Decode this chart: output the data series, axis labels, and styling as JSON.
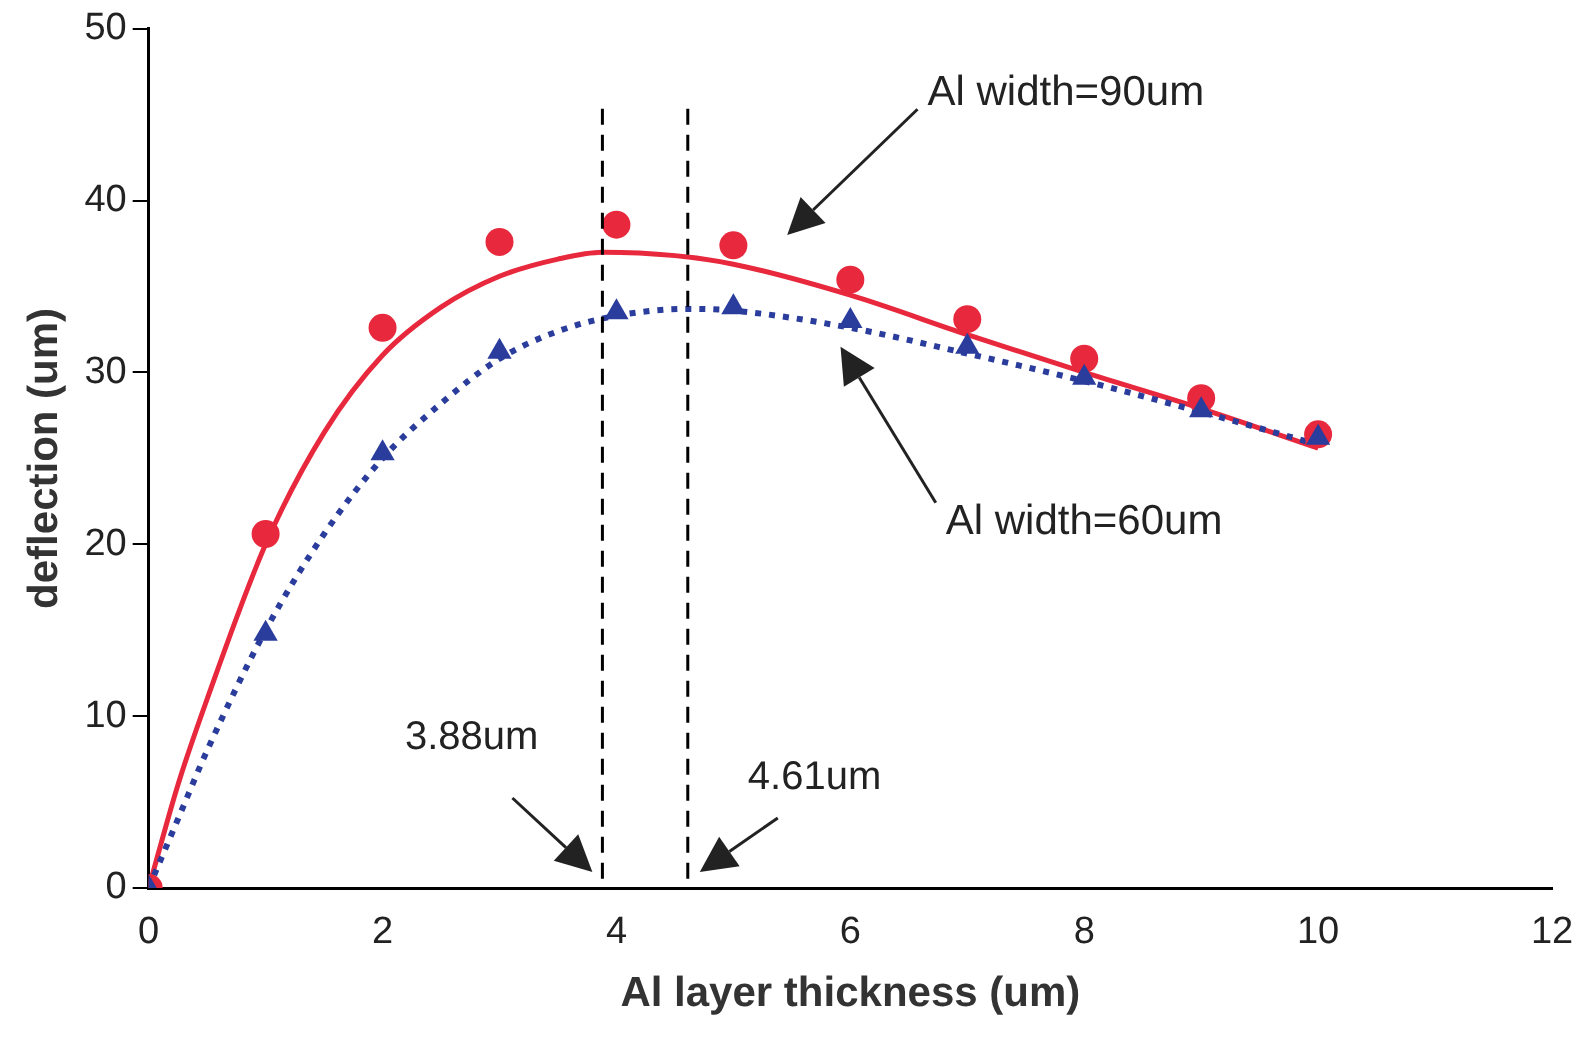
{
  "chart_data": {
    "type": "scatter",
    "xlabel": "Al layer thickness (um)",
    "ylabel": "deflection (um)",
    "x": [
      0,
      1,
      2,
      3,
      4,
      5,
      6,
      7,
      8,
      9,
      10
    ],
    "series": [
      {
        "type": "line",
        "color": "#e8283c",
        "line_style": "solid",
        "marker": "none",
        "x": [
          0,
          0.25,
          0.5,
          1,
          1.5,
          2,
          2.5,
          3,
          3.5,
          3.88,
          4.5,
          5,
          6,
          7,
          8,
          9,
          10
        ],
        "values": [
          0,
          6,
          11,
          20,
          26.5,
          31,
          33.8,
          35.6,
          36.6,
          37,
          36.8,
          36.3,
          34.5,
          32.2,
          30,
          27.9,
          25.6
        ]
      },
      {
        "type": "line",
        "color": "#2a3c9c",
        "line_style": "dotted",
        "marker": "none",
        "x": [
          0,
          0.25,
          0.5,
          1,
          1.5,
          2,
          2.5,
          3,
          3.5,
          4,
          4.61,
          5,
          6,
          7,
          8,
          9,
          10
        ],
        "values": [
          0,
          4,
          8,
          15,
          20.6,
          25,
          28.2,
          30.8,
          32.4,
          33.3,
          33.7,
          33.6,
          32.6,
          31.1,
          29.5,
          27.7,
          25.8
        ]
      },
      {
        "color": "#e8283c",
        "marker": "circle",
        "values": [
          0,
          20.6,
          32.6,
          37.6,
          38.6,
          37.4,
          35.4,
          33.1,
          30.8,
          28.5,
          26.4
        ]
      },
      {
        "color": "#2a3c9c",
        "marker": "triangle",
        "values": [
          0,
          14.8,
          25.3,
          31.2,
          33.5,
          33.8,
          33,
          31.5,
          29.7,
          27.8,
          26.2
        ]
      }
    ],
    "xlim": [
      0,
      12
    ],
    "xticks": [
      0,
      2,
      4,
      6,
      8,
      10,
      12
    ],
    "ylim": [
      0,
      50
    ],
    "yticks": [
      0,
      10,
      20,
      30,
      40,
      50
    ],
    "grid": false,
    "legend": false,
    "ref_lines": [
      {
        "axis": "x",
        "value": 3.88,
        "label": "3.88um",
        "line_style": "dashed",
        "color": "#000000"
      },
      {
        "axis": "x",
        "value": 4.61,
        "label": "4.61um",
        "line_style": "dashed",
        "color": "#000000"
      }
    ],
    "annotations": [
      "Al width=90um",
      "Al width=60um"
    ]
  }
}
